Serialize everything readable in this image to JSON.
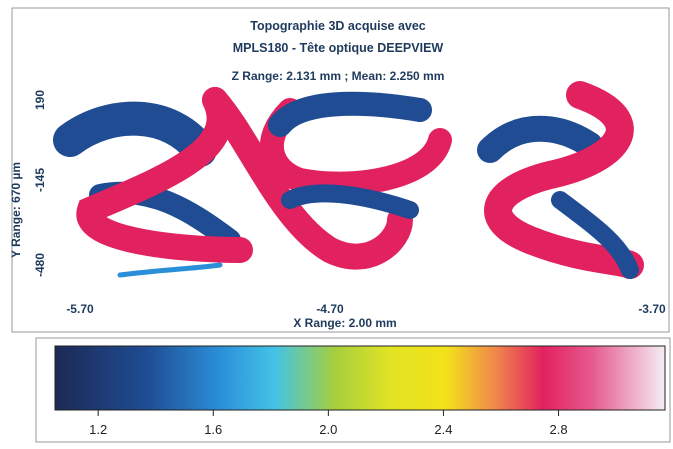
{
  "header": {
    "title_lines": [
      "Topographie 3D acquise avec",
      "MPLS180 - Tête optique DEEPVIEW"
    ],
    "z_range": "Z Range:  2.131 mm ; Mean:  2.250 mm"
  },
  "image": {
    "y_axis_label": "Y Range:  670 µm",
    "y_labels": [
      "190",
      "-145",
      "-480"
    ],
    "x_labels": [
      "-5.70",
      "-4.70",
      "-3.70"
    ],
    "x_axis_label": "X Range:  2.00 mm"
  },
  "colorbar": {
    "lim": [
      1.05,
      3.17
    ],
    "ticks": [
      1.2,
      1.6,
      {
        "value": 2,
        "label": "2.0"
      },
      2.4,
      2.8
    ]
  }
}
